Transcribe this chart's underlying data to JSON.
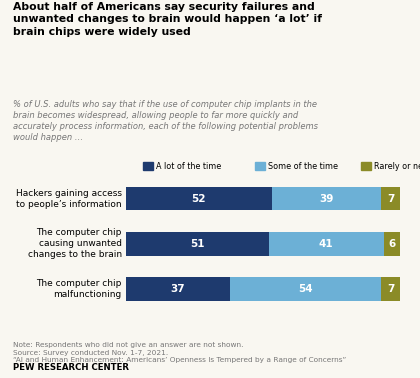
{
  "title": "About half of Americans say security failures and\nunwanted changes to brain would happen ‘a lot’ if\nbrain chips were widely used",
  "subtitle": "% of U.S. adults who say that if the use of computer chip implants in the\nbrain becomes widespread, allowing people to far more quickly and\naccurately process information, each of the following potential problems\nwould happen …",
  "categories": [
    "Hackers gaining access\nto people’s information",
    "The computer chip\ncausing unwanted\nchanges to the brain",
    "The computer chip\nmalfunctioning"
  ],
  "a_lot": [
    52,
    51,
    37
  ],
  "some": [
    39,
    41,
    54
  ],
  "rarely": [
    7,
    6,
    7
  ],
  "color_a_lot": "#1e3a6e",
  "color_some": "#6cb0d6",
  "color_rarely": "#8b8b27",
  "legend_labels": [
    "A lot of the time",
    "Some of the time",
    "Rarely or never"
  ],
  "note": "Note: Respondents who did not give an answer are not shown.\nSource: Survey conducted Nov. 1-7, 2021.\n“AI and Human Enhancement: Americans’ Openness Is Tempered by a Range of Concerns”",
  "footer": "PEW RESEARCH CENTER",
  "bg": "#f9f7f1"
}
